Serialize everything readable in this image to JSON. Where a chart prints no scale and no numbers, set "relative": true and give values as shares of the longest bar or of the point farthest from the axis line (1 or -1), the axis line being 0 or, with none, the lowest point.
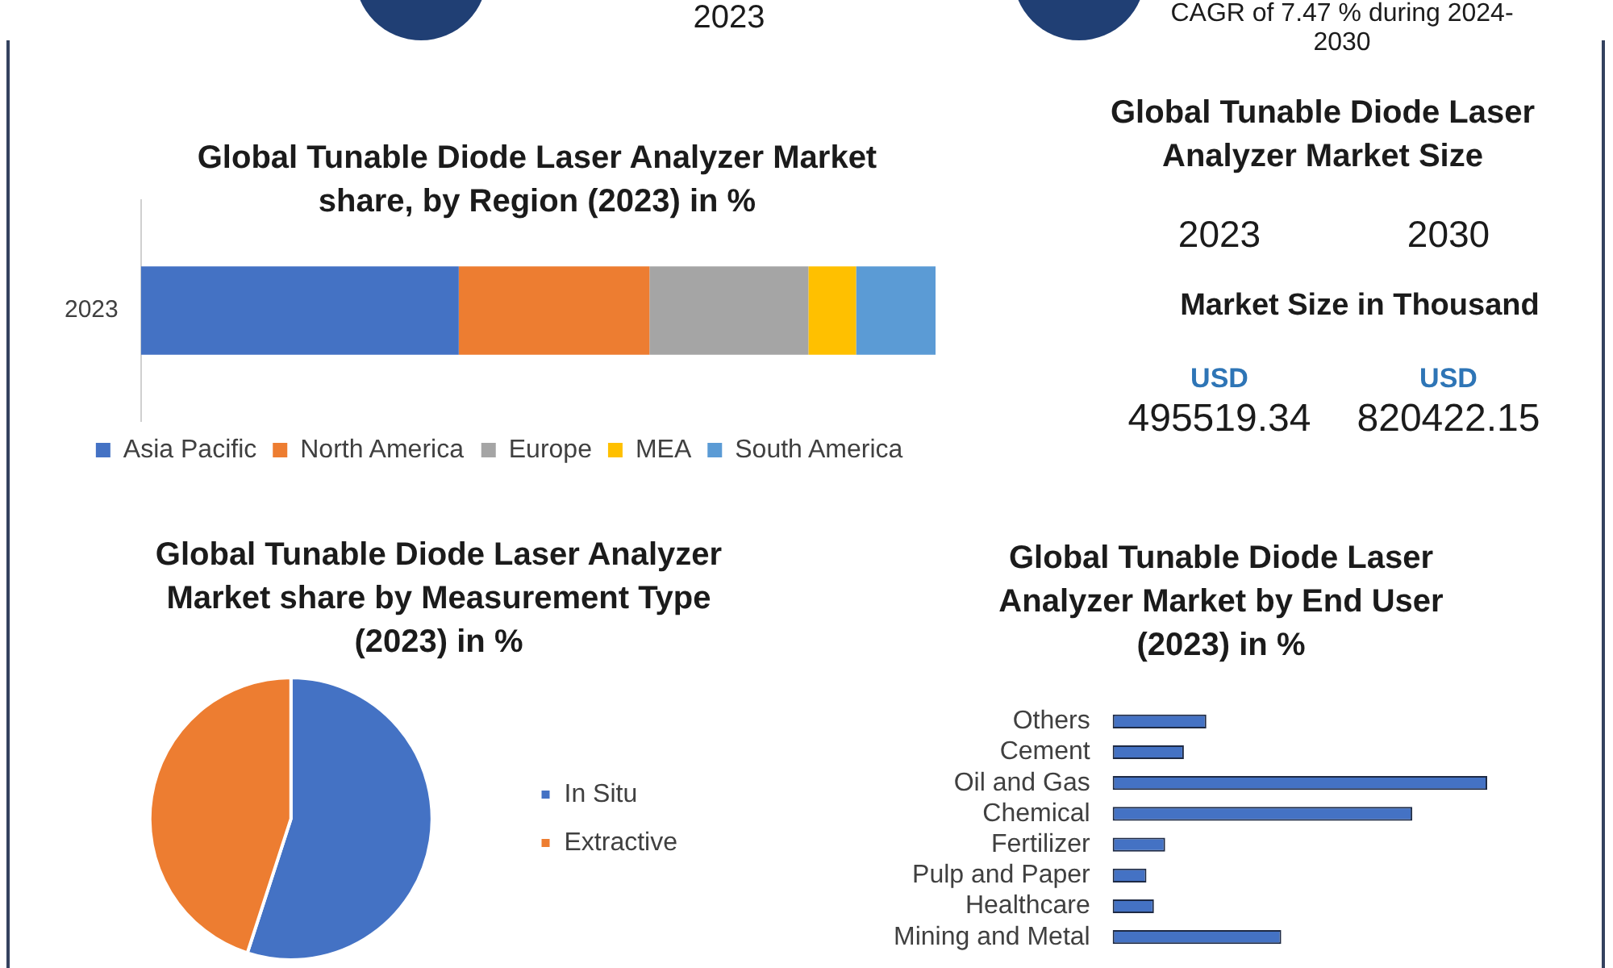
{
  "chart_data": [
    {
      "type": "other",
      "annotations": [
        "2023",
        "CAGR of 7.47 % during 2024-2030"
      ]
    },
    {
      "type": "bar",
      "title": "Global Tunable Diode Laser Analyzer Market share, by Region (2023) in %",
      "orientation": "horizontal",
      "stacked": true,
      "relative": true,
      "categories": [
        "2023"
      ],
      "series": [
        {
          "name": "Asia Pacific",
          "color": "#4472c4",
          "values": [
            0.4
          ]
        },
        {
          "name": "North America",
          "color": "#ed7d31",
          "values": [
            0.24
          ]
        },
        {
          "name": "Europe",
          "color": "#a5a5a5",
          "values": [
            0.2
          ]
        },
        {
          "name": "MEA",
          "color": "#ffc000",
          "values": [
            0.06
          ]
        },
        {
          "name": "South America",
          "color": "#5b9bd5",
          "values": [
            0.1
          ]
        }
      ],
      "legend": "bottom"
    },
    {
      "type": "other",
      "title": "Global Tunable Diode Laser Analyzer Market Size",
      "subtitle": "Market Size in Thousand",
      "categories": [
        "2023",
        "2030"
      ],
      "annotations": [
        "USD",
        "USD",
        "495519.34",
        "820422.15"
      ]
    },
    {
      "type": "pie",
      "title": "Global Tunable Diode Laser Analyzer Market share by Measurement Type (2023) in %",
      "categories": [
        "In Situ",
        "Extractive"
      ],
      "values": [
        55,
        45
      ],
      "colors": [
        "#4472c4",
        "#ed7d31"
      ],
      "legend": "right"
    },
    {
      "type": "bar",
      "title": "Global Tunable Diode Laser Analyzer Market by End User (2023) in %",
      "orientation": "horizontal",
      "relative": true,
      "categories": [
        "Others",
        "Cement",
        "Oil and Gas",
        "Chemical",
        "Fertilizer",
        "Pulp and Paper",
        "Healthcare",
        "Mining and Metal"
      ],
      "values": [
        0.25,
        0.19,
        1,
        0.8,
        0.14,
        0.09,
        0.11,
        0.45
      ],
      "color": "#4472c4"
    }
  ]
}
